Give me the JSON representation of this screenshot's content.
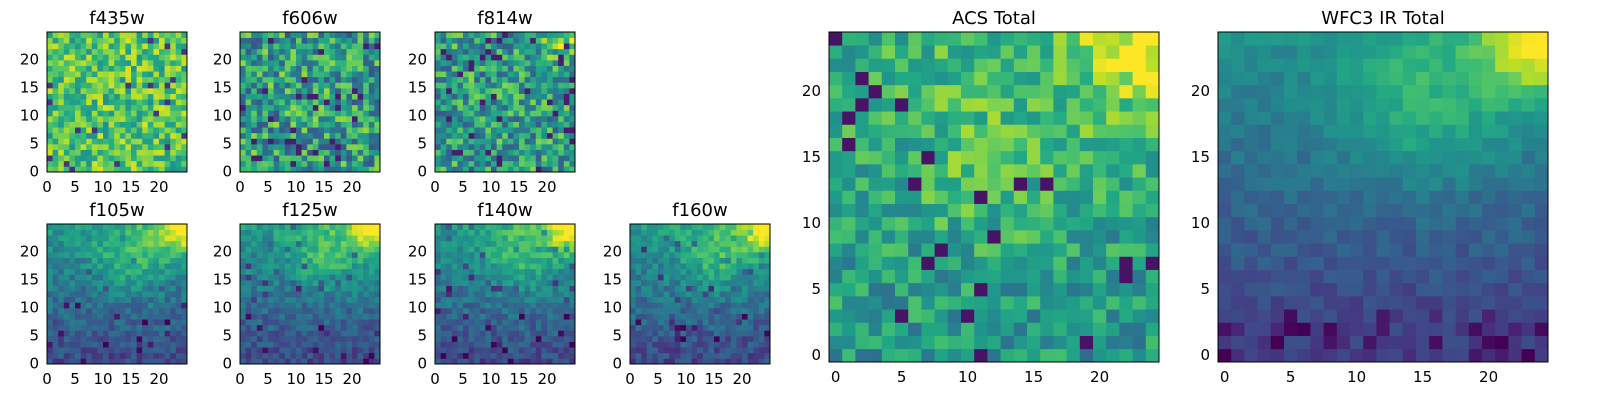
{
  "chart_data": [
    {
      "type": "heatmap",
      "title": "f435w",
      "pattern": "uniform_bright",
      "grid": [
        25,
        25
      ],
      "xlim": [
        0,
        24
      ],
      "ylim": [
        0,
        24
      ],
      "xticks": [
        0,
        5,
        10,
        15,
        20
      ],
      "yticks": [
        0,
        5,
        10,
        15,
        20
      ],
      "colormap": "viridis"
    },
    {
      "type": "heatmap",
      "title": "f606w",
      "pattern": "uniform_mid",
      "grid": [
        25,
        25
      ],
      "xlim": [
        0,
        24
      ],
      "ylim": [
        0,
        24
      ],
      "xticks": [
        0,
        5,
        10,
        15,
        20
      ],
      "yticks": [
        0,
        5,
        10,
        15,
        20
      ],
      "colormap": "viridis"
    },
    {
      "type": "heatmap",
      "title": "f814w",
      "pattern": "uniform_mid_corner",
      "grid": [
        25,
        25
      ],
      "xlim": [
        0,
        24
      ],
      "ylim": [
        0,
        24
      ],
      "xticks": [
        0,
        5,
        10,
        15,
        20
      ],
      "yticks": [
        0,
        5,
        10,
        15,
        20
      ],
      "colormap": "viridis"
    },
    {
      "type": "heatmap",
      "title": "f105w",
      "pattern": "ir_gradient",
      "grid": [
        25,
        25
      ],
      "xlim": [
        0,
        24
      ],
      "ylim": [
        0,
        24
      ],
      "xticks": [
        0,
        5,
        10,
        15,
        20
      ],
      "yticks": [
        0,
        5,
        10,
        15,
        20
      ],
      "colormap": "viridis"
    },
    {
      "type": "heatmap",
      "title": "f125w",
      "pattern": "ir_gradient",
      "grid": [
        25,
        25
      ],
      "xlim": [
        0,
        24
      ],
      "ylim": [
        0,
        24
      ],
      "xticks": [
        0,
        5,
        10,
        15,
        20
      ],
      "yticks": [
        0,
        5,
        10,
        15,
        20
      ],
      "colormap": "viridis"
    },
    {
      "type": "heatmap",
      "title": "f140w",
      "pattern": "ir_gradient",
      "grid": [
        25,
        25
      ],
      "xlim": [
        0,
        24
      ],
      "ylim": [
        0,
        24
      ],
      "xticks": [
        0,
        5,
        10,
        15,
        20
      ],
      "yticks": [
        0,
        5,
        10,
        15,
        20
      ],
      "colormap": "viridis"
    },
    {
      "type": "heatmap",
      "title": "f160w",
      "pattern": "ir_gradient",
      "grid": [
        25,
        25
      ],
      "xlim": [
        0,
        24
      ],
      "ylim": [
        0,
        24
      ],
      "xticks": [
        0,
        5,
        10,
        15,
        20
      ],
      "yticks": [
        0,
        5,
        10,
        15,
        20
      ],
      "colormap": "viridis"
    },
    {
      "type": "heatmap",
      "title": "ACS Total",
      "pattern": "acs_total",
      "grid": [
        25,
        25
      ],
      "xlim": [
        0,
        24
      ],
      "ylim": [
        0,
        24
      ],
      "xticks": [
        0,
        5,
        10,
        15,
        20
      ],
      "yticks": [
        0,
        5,
        10,
        15,
        20
      ],
      "colormap": "viridis"
    },
    {
      "type": "heatmap",
      "title": "WFC3 IR Total",
      "pattern": "ir_total",
      "grid": [
        25,
        25
      ],
      "xlim": [
        0,
        24
      ],
      "ylim": [
        0,
        24
      ],
      "xticks": [
        0,
        5,
        10,
        15,
        20
      ],
      "yticks": [
        0,
        5,
        10,
        15,
        20
      ],
      "colormap": "viridis"
    }
  ]
}
